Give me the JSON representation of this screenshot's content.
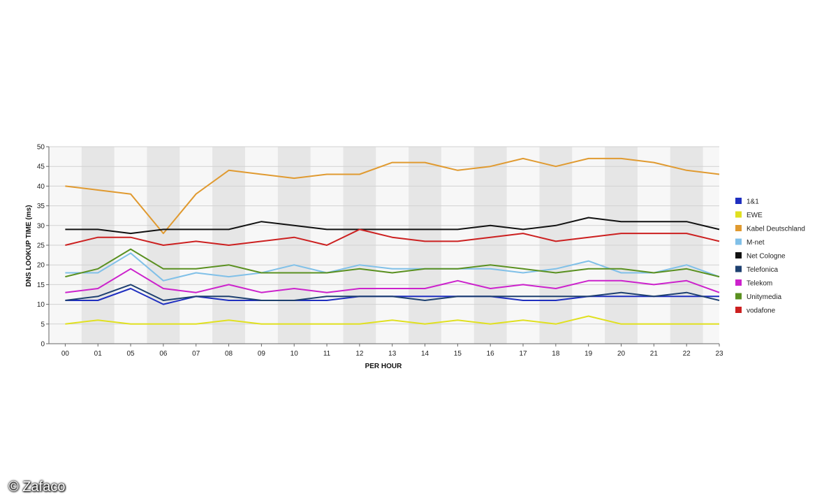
{
  "chart_data": {
    "type": "line",
    "title": "",
    "xlabel": "PER HOUR",
    "ylabel": "DNS LOOKUP TIME (ms)",
    "ylim": [
      0,
      50
    ],
    "yticks": [
      "0",
      "5",
      "10",
      "15",
      "20",
      "25",
      "30",
      "35",
      "40",
      "45",
      "50"
    ],
    "categories": [
      "00",
      "01",
      "05",
      "06",
      "07",
      "08",
      "09",
      "10",
      "11",
      "12",
      "13",
      "14",
      "15",
      "16",
      "17",
      "18",
      "19",
      "20",
      "21",
      "22",
      "23"
    ],
    "grid": "horizontal lines with alternating shaded columns",
    "legend_position": "right",
    "series": [
      {
        "name": "1&1",
        "color": "#1f2fc0",
        "values": [
          11,
          11,
          14,
          10,
          12,
          11,
          11,
          11,
          11,
          12,
          12,
          12,
          12,
          12,
          11,
          11,
          12,
          12,
          12,
          12,
          12
        ]
      },
      {
        "name": "EWE",
        "color": "#e0e020",
        "values": [
          5,
          6,
          5,
          5,
          5,
          6,
          5,
          5,
          5,
          5,
          6,
          5,
          6,
          5,
          6,
          5,
          7,
          5,
          5,
          5,
          5
        ]
      },
      {
        "name": "Kabel Deutschland",
        "color": "#e09a30",
        "values": [
          40,
          39,
          38,
          28,
          38,
          44,
          43,
          42,
          43,
          43,
          46,
          46,
          44,
          45,
          47,
          45,
          47,
          47,
          46,
          44,
          43
        ]
      },
      {
        "name": "M-net",
        "color": "#80c0e8",
        "values": [
          18,
          18,
          23,
          16,
          18,
          17,
          18,
          20,
          18,
          20,
          19,
          19,
          19,
          19,
          18,
          19,
          21,
          18,
          18,
          20,
          17
        ]
      },
      {
        "name": "Net Cologne",
        "color": "#111111",
        "values": [
          29,
          29,
          28,
          29,
          29,
          29,
          31,
          30,
          29,
          29,
          29,
          29,
          29,
          30,
          29,
          30,
          32,
          31,
          31,
          31,
          29
        ]
      },
      {
        "name": "Telefonica",
        "color": "#1e4070",
        "values": [
          11,
          12,
          15,
          11,
          12,
          12,
          11,
          11,
          12,
          12,
          12,
          11,
          12,
          12,
          12,
          12,
          12,
          13,
          12,
          13,
          11
        ]
      },
      {
        "name": "Telekom",
        "color": "#cc22cc",
        "values": [
          13,
          14,
          19,
          14,
          13,
          15,
          13,
          14,
          13,
          14,
          14,
          14,
          16,
          14,
          15,
          14,
          16,
          16,
          15,
          16,
          13
        ]
      },
      {
        "name": "Unitymedia",
        "color": "#5a9020",
        "values": [
          17,
          19,
          24,
          19,
          19,
          20,
          18,
          18,
          18,
          19,
          18,
          19,
          19,
          20,
          19,
          18,
          19,
          19,
          18,
          19,
          17
        ]
      },
      {
        "name": "vodafone",
        "color": "#cc2020",
        "values": [
          25,
          27,
          27,
          25,
          26,
          25,
          26,
          27,
          25,
          29,
          27,
          26,
          26,
          27,
          28,
          26,
          27,
          28,
          28,
          28,
          26
        ]
      }
    ]
  },
  "watermark": "© Zafaco"
}
